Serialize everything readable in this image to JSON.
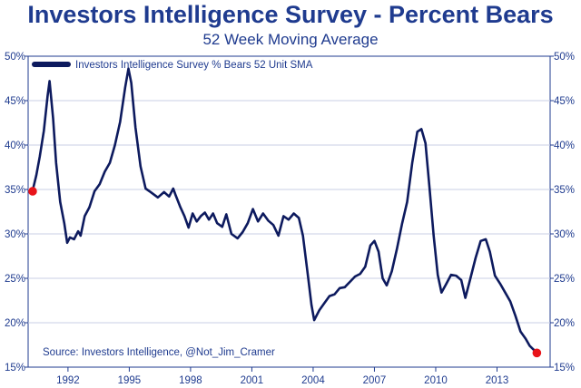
{
  "chart_data": {
    "type": "line",
    "title": "Investors Intelligence Survey - Percent Bears",
    "subtitle": "52 Week Moving Average",
    "legend": "Investors Intelligence Survey % Bears 52 Unit SMA",
    "legend_position": "top-left",
    "source": "Source: Investors Intelligence, @Not_Jim_Cramer",
    "xlim": [
      1990.05,
      2015.6
    ],
    "ylim": [
      15,
      50
    ],
    "x_ticks": [
      1992,
      1995,
      1998,
      2001,
      2004,
      2007,
      2010,
      2013
    ],
    "x_tick_labels": [
      "1992",
      "1995",
      "1998",
      "2001",
      "2004",
      "2007",
      "2010",
      "2013"
    ],
    "y_ticks": [
      15,
      20,
      25,
      30,
      35,
      40,
      45,
      50
    ],
    "y_tick_labels": [
      "15%",
      "20%",
      "25%",
      "30%",
      "35%",
      "40%",
      "45%",
      "50%"
    ],
    "series": [
      {
        "name": "Investors Intelligence Survey % Bears 52 Unit SMA",
        "color": "#0d1a5e",
        "points": [
          [
            1990.27,
            34.9
          ],
          [
            1990.45,
            36.6
          ],
          [
            1990.62,
            38.7
          ],
          [
            1990.82,
            41.6
          ],
          [
            1991.0,
            45.5
          ],
          [
            1991.1,
            47.2
          ],
          [
            1991.27,
            43.0
          ],
          [
            1991.42,
            38.0
          ],
          [
            1991.62,
            33.6
          ],
          [
            1991.82,
            31.2
          ],
          [
            1991.96,
            29.0
          ],
          [
            1992.1,
            29.6
          ],
          [
            1992.3,
            29.4
          ],
          [
            1992.5,
            30.3
          ],
          [
            1992.62,
            29.8
          ],
          [
            1992.82,
            32.0
          ],
          [
            1993.05,
            33.0
          ],
          [
            1993.3,
            34.8
          ],
          [
            1993.55,
            35.6
          ],
          [
            1993.8,
            37.0
          ],
          [
            1994.05,
            38.0
          ],
          [
            1994.3,
            40.0
          ],
          [
            1994.55,
            42.6
          ],
          [
            1994.8,
            46.5
          ],
          [
            1994.96,
            48.6
          ],
          [
            1995.1,
            47.0
          ],
          [
            1995.3,
            42.0
          ],
          [
            1995.55,
            37.6
          ],
          [
            1995.8,
            35.1
          ],
          [
            1996.05,
            34.7
          ],
          [
            1996.4,
            34.1
          ],
          [
            1996.7,
            34.7
          ],
          [
            1996.95,
            34.2
          ],
          [
            1997.15,
            35.1
          ],
          [
            1997.28,
            34.3
          ],
          [
            1997.5,
            33.0
          ],
          [
            1997.7,
            32.0
          ],
          [
            1997.9,
            30.7
          ],
          [
            1998.1,
            32.3
          ],
          [
            1998.3,
            31.4
          ],
          [
            1998.5,
            32.0
          ],
          [
            1998.7,
            32.4
          ],
          [
            1998.9,
            31.6
          ],
          [
            1999.1,
            32.3
          ],
          [
            1999.3,
            31.2
          ],
          [
            1999.55,
            30.8
          ],
          [
            1999.75,
            32.2
          ],
          [
            2000.0,
            30.0
          ],
          [
            2000.3,
            29.5
          ],
          [
            2000.55,
            30.2
          ],
          [
            2000.8,
            31.2
          ],
          [
            2001.05,
            32.8
          ],
          [
            2001.3,
            31.4
          ],
          [
            2001.55,
            32.3
          ],
          [
            2001.8,
            31.5
          ],
          [
            2002.05,
            31.0
          ],
          [
            2002.3,
            29.8
          ],
          [
            2002.55,
            32.0
          ],
          [
            2002.8,
            31.6
          ],
          [
            2003.05,
            32.3
          ],
          [
            2003.3,
            31.8
          ],
          [
            2003.5,
            29.8
          ],
          [
            2003.75,
            25.2
          ],
          [
            2003.92,
            22.0
          ],
          [
            2004.05,
            20.3
          ],
          [
            2004.3,
            21.4
          ],
          [
            2004.55,
            22.2
          ],
          [
            2004.8,
            23.0
          ],
          [
            2005.05,
            23.2
          ],
          [
            2005.3,
            23.9
          ],
          [
            2005.55,
            24.0
          ],
          [
            2005.8,
            24.6
          ],
          [
            2006.05,
            25.2
          ],
          [
            2006.3,
            25.5
          ],
          [
            2006.55,
            26.3
          ],
          [
            2006.8,
            28.7
          ],
          [
            2007.0,
            29.2
          ],
          [
            2007.2,
            28.0
          ],
          [
            2007.4,
            25.0
          ],
          [
            2007.6,
            24.2
          ],
          [
            2007.85,
            25.8
          ],
          [
            2008.1,
            28.3
          ],
          [
            2008.35,
            31.1
          ],
          [
            2008.6,
            33.6
          ],
          [
            2008.85,
            38.0
          ],
          [
            2009.1,
            41.5
          ],
          [
            2009.3,
            41.8
          ],
          [
            2009.5,
            40.2
          ],
          [
            2009.7,
            35.1
          ],
          [
            2009.9,
            29.8
          ],
          [
            2010.1,
            25.4
          ],
          [
            2010.28,
            23.4
          ],
          [
            2010.5,
            24.3
          ],
          [
            2010.75,
            25.4
          ],
          [
            2011.0,
            25.3
          ],
          [
            2011.25,
            24.8
          ],
          [
            2011.45,
            22.8
          ],
          [
            2011.7,
            25.0
          ],
          [
            2011.95,
            27.3
          ],
          [
            2012.2,
            29.2
          ],
          [
            2012.45,
            29.4
          ],
          [
            2012.65,
            28.0
          ],
          [
            2012.9,
            25.3
          ],
          [
            2013.15,
            24.4
          ],
          [
            2013.4,
            23.4
          ],
          [
            2013.65,
            22.4
          ],
          [
            2013.9,
            20.8
          ],
          [
            2014.15,
            19.0
          ],
          [
            2014.4,
            18.2
          ],
          [
            2014.6,
            17.4
          ],
          [
            2014.78,
            17.0
          ],
          [
            2014.95,
            16.7
          ]
        ]
      }
    ],
    "markers": [
      {
        "x": 1990.27,
        "y": 34.8,
        "color": "#e8141a"
      },
      {
        "x": 2014.95,
        "y": 16.6,
        "color": "#e8141a"
      }
    ]
  }
}
